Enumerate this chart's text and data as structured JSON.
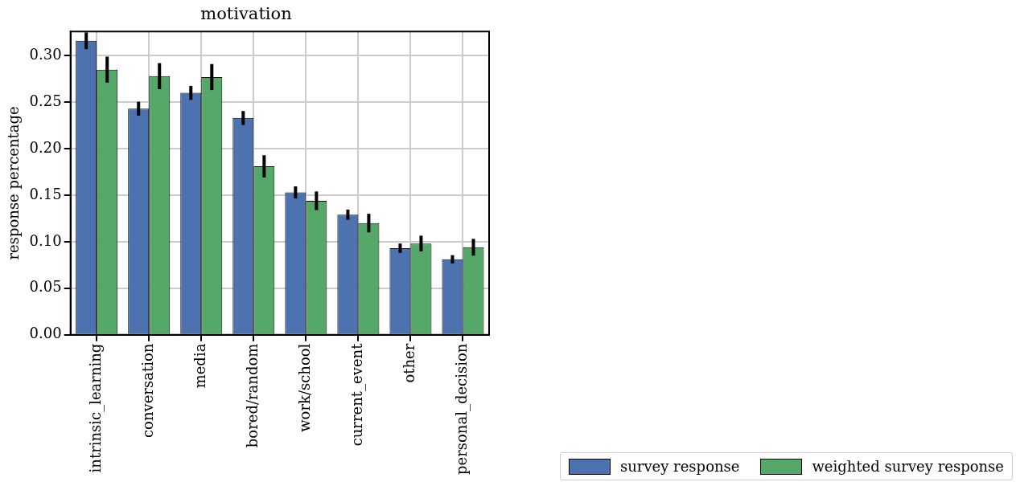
{
  "chart_data": {
    "type": "bar",
    "title": "motivation",
    "ylabel": "response percentage",
    "categories": [
      "intrinsic_learning",
      "conversation",
      "media",
      "bored/random",
      "work/school",
      "current_event",
      "other",
      "personal_decision"
    ],
    "series": [
      {
        "name": "survey response",
        "color": "#4c72b0",
        "values": [
          0.316,
          0.243,
          0.26,
          0.233,
          0.153,
          0.129,
          0.093,
          0.081
        ],
        "errors": [
          0.009,
          0.0075,
          0.0075,
          0.0075,
          0.0065,
          0.0055,
          0.005,
          0.0045
        ]
      },
      {
        "name": "weighted survey response",
        "color": "#55a868",
        "values": [
          0.285,
          0.278,
          0.277,
          0.181,
          0.144,
          0.12,
          0.098,
          0.094
        ],
        "errors": [
          0.014,
          0.014,
          0.014,
          0.012,
          0.01,
          0.01,
          0.0085,
          0.009
        ]
      }
    ],
    "ylim": [
      0,
      0.326
    ],
    "yticks": [
      {
        "value": 0,
        "label": "0.00"
      },
      {
        "value": 0.05,
        "label": "0.05"
      },
      {
        "value": 0.1,
        "label": "0.10"
      },
      {
        "value": 0.15,
        "label": "0.15"
      },
      {
        "value": 0.2,
        "label": "0.20"
      },
      {
        "value": 0.25,
        "label": "0.25"
      },
      {
        "value": 0.3,
        "label": "0.30"
      }
    ],
    "grid": true,
    "legend": "bottom right"
  }
}
